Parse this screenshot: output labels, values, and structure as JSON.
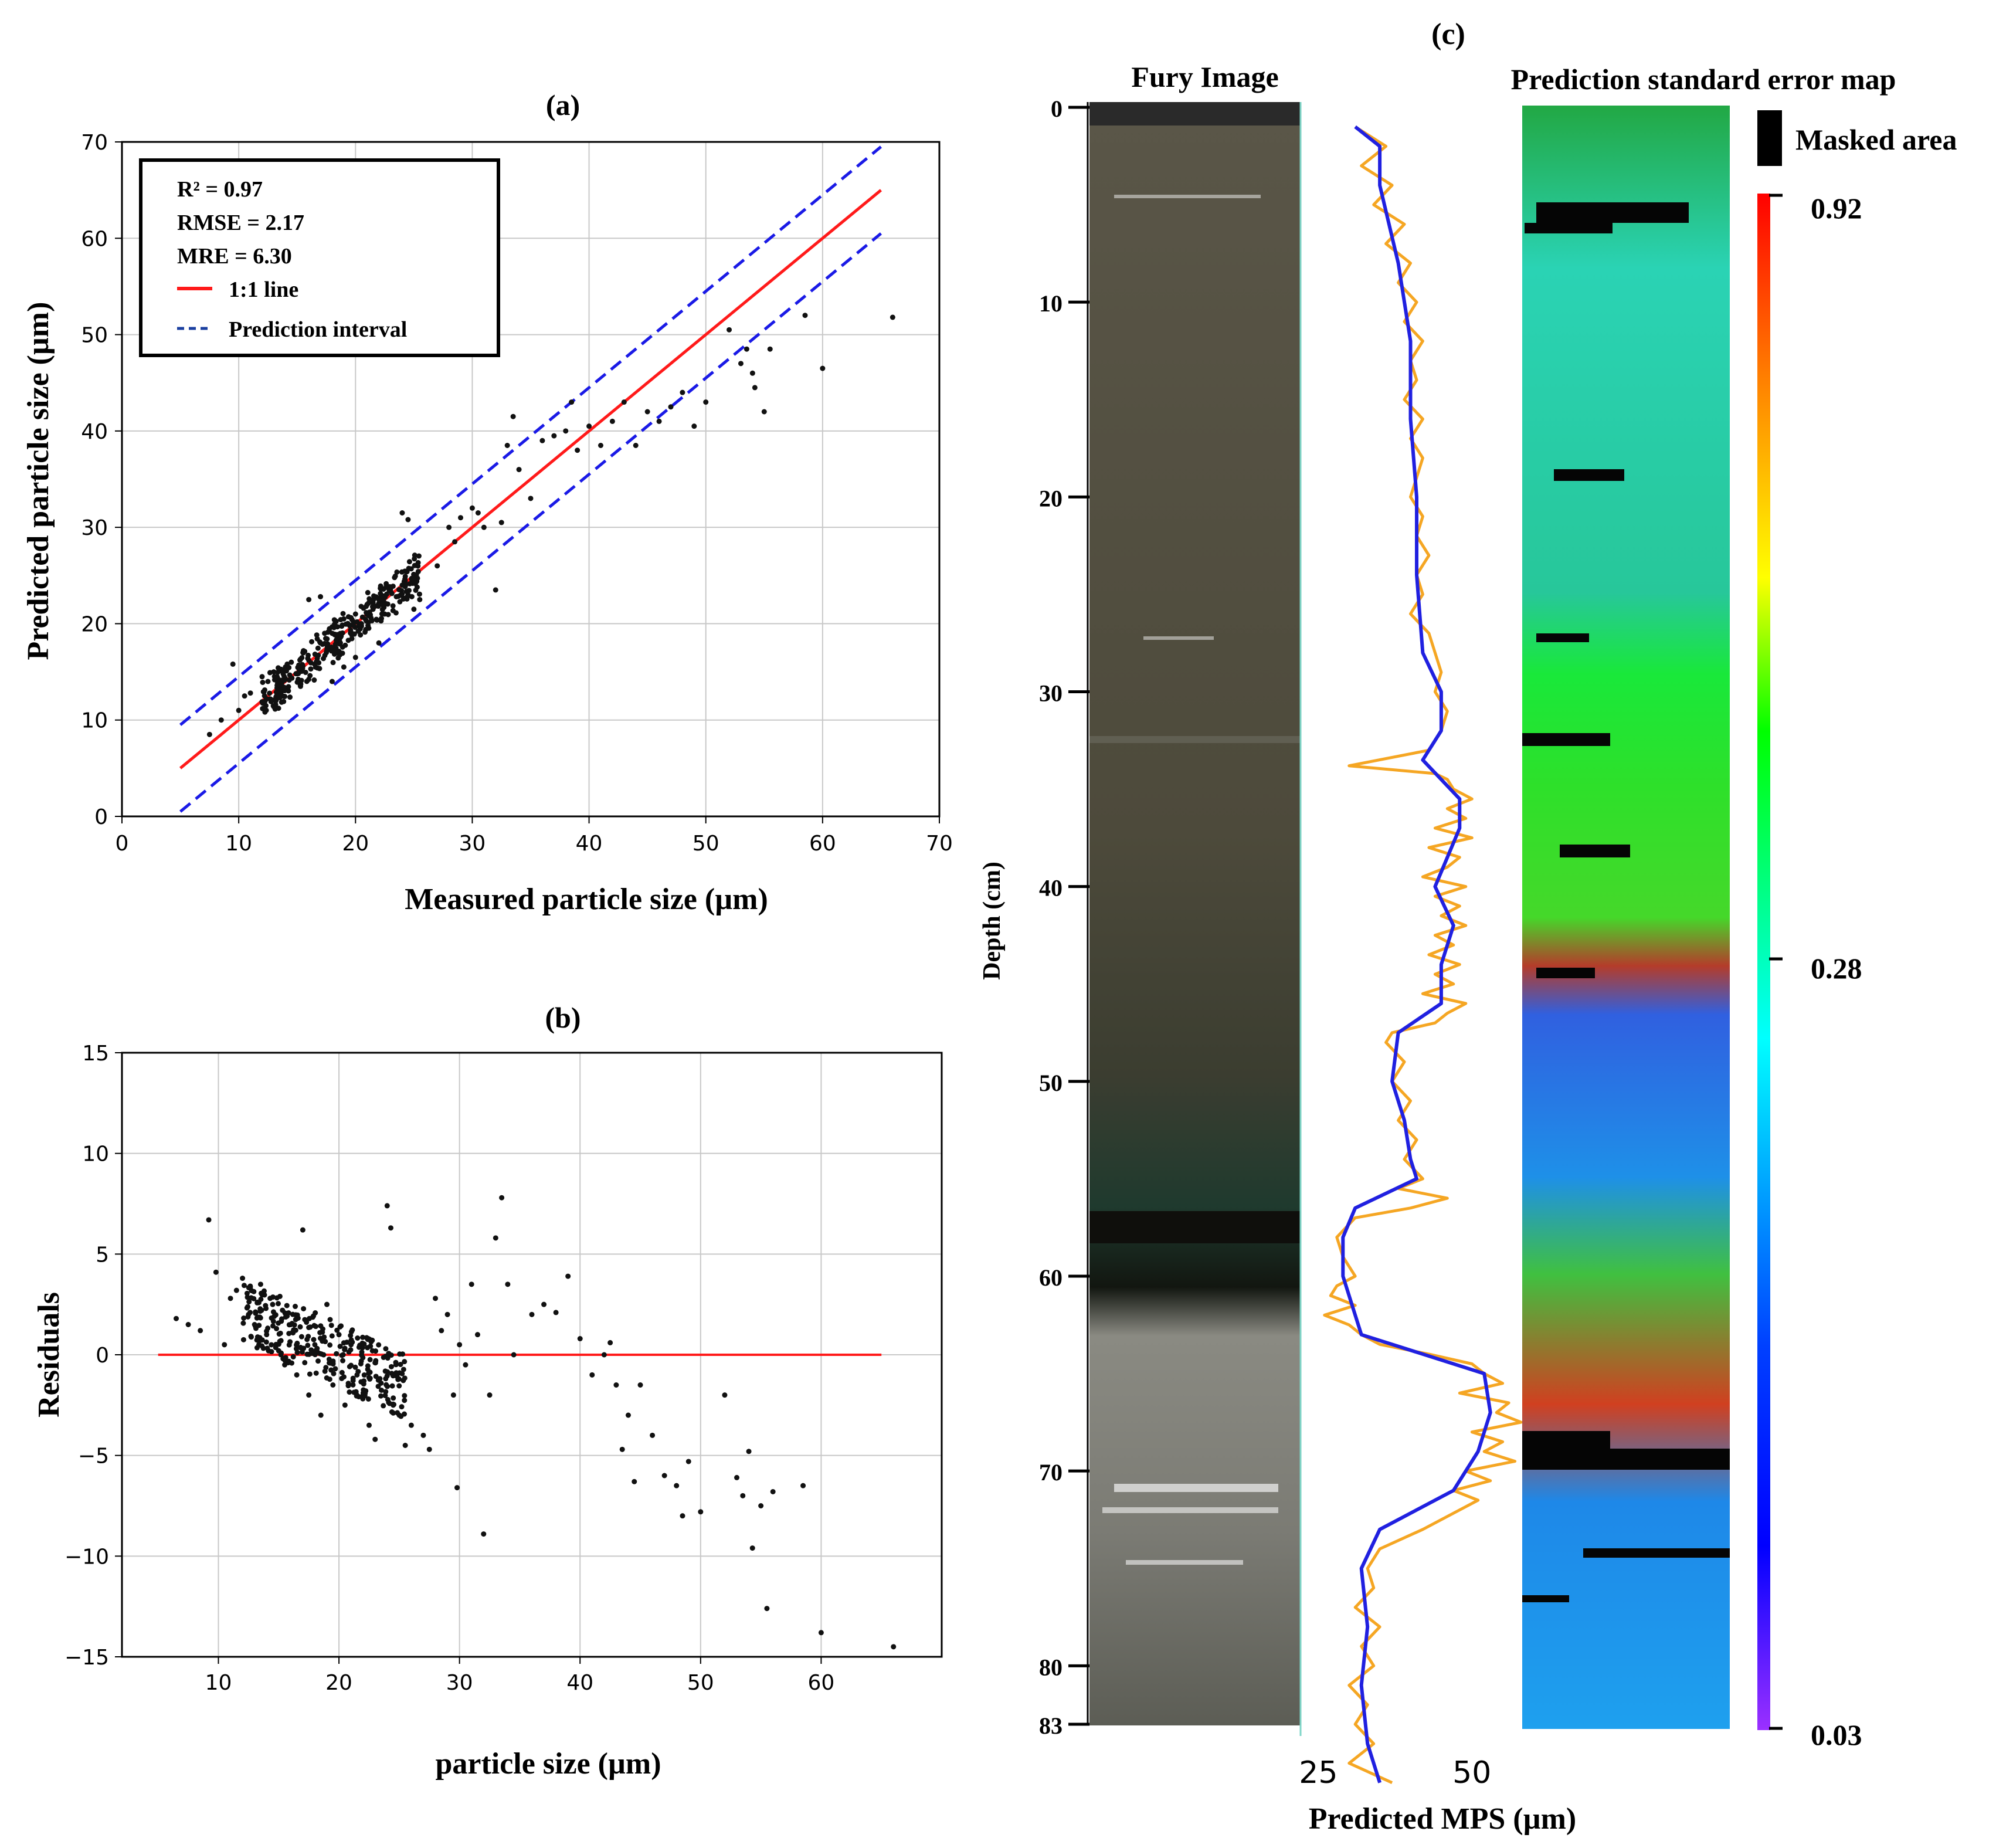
{
  "colors": {
    "fit_line": "#ff1a1a",
    "interval_line": "#1a1ae6",
    "points": "#111111",
    "orange_trace": "#f5a623",
    "blue_trace": "#2020e0"
  },
  "chart_data": [
    {
      "id": "a",
      "type": "scatter",
      "title": "(a)",
      "xlabel": "Measured particle size (µm)",
      "ylabel": "Predicted particle size (µm)",
      "xlim": [
        0,
        70
      ],
      "ylim": [
        0,
        70
      ],
      "xticks": [
        "0",
        "10",
        "20",
        "30",
        "40",
        "50",
        "60",
        "70"
      ],
      "yticks": [
        "0",
        "10",
        "20",
        "30",
        "40",
        "50",
        "60",
        "70"
      ],
      "grid": true,
      "legend": {
        "position": "top-left",
        "stats": [
          "R² = 0.97",
          "RMSE = 2.17",
          "MRE = 6.30"
        ],
        "entries": [
          {
            "label": "1:1 line",
            "style": "solid red"
          },
          {
            "label": "Prediction interval",
            "style": "dashed blue"
          }
        ]
      },
      "lines": [
        {
          "name": "1:1 line",
          "x": [
            5,
            65
          ],
          "y": [
            5,
            65
          ]
        },
        {
          "name": "upper prediction interval",
          "x": [
            5,
            65
          ],
          "y": [
            9.5,
            69.5
          ]
        },
        {
          "name": "lower prediction interval",
          "x": [
            5,
            65
          ],
          "y": [
            0.5,
            60.5
          ]
        }
      ],
      "points": [
        [
          7.5,
          8.5
        ],
        [
          8.5,
          10
        ],
        [
          9.5,
          15.8
        ],
        [
          10,
          11
        ],
        [
          10.5,
          12.5
        ],
        [
          11,
          12.8
        ],
        [
          12,
          14.5
        ],
        [
          12.5,
          14
        ],
        [
          13,
          15
        ],
        [
          13.5,
          13.5
        ],
        [
          14,
          15.5
        ],
        [
          14.5,
          16
        ],
        [
          15,
          14.8
        ],
        [
          15.5,
          17
        ],
        [
          16,
          16.2
        ],
        [
          16.5,
          15.8
        ],
        [
          17,
          18
        ],
        [
          17.5,
          17
        ],
        [
          18,
          19
        ],
        [
          18.5,
          18.5
        ],
        [
          19,
          20.5
        ],
        [
          19.5,
          19.8
        ],
        [
          20,
          21
        ],
        [
          20.5,
          20
        ],
        [
          21,
          22
        ],
        [
          21.5,
          21.5
        ],
        [
          22,
          22.5
        ],
        [
          22.5,
          21
        ],
        [
          23,
          23.5
        ],
        [
          23.5,
          22.8
        ],
        [
          24,
          24
        ],
        [
          24.5,
          23
        ],
        [
          25,
          21.5
        ],
        [
          25.5,
          22.5
        ],
        [
          16,
          22.5
        ],
        [
          17,
          22.8
        ],
        [
          18,
          14
        ],
        [
          19,
          15.5
        ],
        [
          20,
          16.5
        ],
        [
          22,
          18
        ],
        [
          24,
          31.5
        ],
        [
          24.5,
          30.8
        ],
        [
          27,
          26
        ],
        [
          28,
          30
        ],
        [
          28.5,
          28.5
        ],
        [
          29,
          31
        ],
        [
          30,
          32
        ],
        [
          30.5,
          31.5
        ],
        [
          31,
          30
        ],
        [
          32,
          23.5
        ],
        [
          32.5,
          30.5
        ],
        [
          33,
          38.5
        ],
        [
          33.5,
          41.5
        ],
        [
          34,
          36
        ],
        [
          35,
          33
        ],
        [
          36,
          39
        ],
        [
          37,
          39.5
        ],
        [
          38,
          40
        ],
        [
          38.5,
          43
        ],
        [
          39,
          38
        ],
        [
          40,
          40.5
        ],
        [
          41,
          38.5
        ],
        [
          42,
          41
        ],
        [
          43,
          43
        ],
        [
          44,
          38.5
        ],
        [
          45,
          42
        ],
        [
          46,
          41
        ],
        [
          47,
          42.5
        ],
        [
          48,
          44
        ],
        [
          49,
          40.5
        ],
        [
          50,
          43
        ],
        [
          52,
          50.5
        ],
        [
          53,
          47
        ],
        [
          53.5,
          48.5
        ],
        [
          54,
          46
        ],
        [
          54.2,
          44.5
        ],
        [
          55,
          42
        ],
        [
          55.5,
          48.5
        ],
        [
          58.5,
          52
        ],
        [
          60,
          46.5
        ],
        [
          66,
          51.8
        ]
      ]
    },
    {
      "id": "b",
      "type": "scatter",
      "title": "(b)",
      "xlabel": "particle size (µm)",
      "ylabel": "Residuals",
      "xlim": [
        2,
        70
      ],
      "ylim": [
        -15,
        15
      ],
      "xticks": [
        "10",
        "20",
        "30",
        "40",
        "50",
        "60"
      ],
      "yticks": [
        "−15",
        "−10",
        "−5",
        "0",
        "5",
        "10",
        "15"
      ],
      "grid": true,
      "lines": [
        {
          "name": "zero line",
          "x": [
            5,
            65
          ],
          "y": [
            0,
            0
          ]
        }
      ],
      "points": [
        [
          6.5,
          1.8
        ],
        [
          7.5,
          1.5
        ],
        [
          8.5,
          1.2
        ],
        [
          9.2,
          6.7
        ],
        [
          9.8,
          4.1
        ],
        [
          10.5,
          0.5
        ],
        [
          11,
          2.8
        ],
        [
          11.5,
          3.2
        ],
        [
          12,
          3.8
        ],
        [
          12.5,
          2
        ],
        [
          13,
          1.5
        ],
        [
          13.5,
          3.5
        ],
        [
          14,
          1
        ],
        [
          14.5,
          2.5
        ],
        [
          15,
          0.2
        ],
        [
          15.5,
          -0.5
        ],
        [
          16,
          1.5
        ],
        [
          16.5,
          -1
        ],
        [
          17,
          6.2
        ],
        [
          17.5,
          -2
        ],
        [
          18,
          0.5
        ],
        [
          18.5,
          -3
        ],
        [
          19,
          2.5
        ],
        [
          19.5,
          -1.5
        ],
        [
          20,
          1
        ],
        [
          20.5,
          -2.5
        ],
        [
          21,
          0.5
        ],
        [
          21.5,
          -1
        ],
        [
          22,
          -2
        ],
        [
          22.5,
          -3.5
        ],
        [
          23,
          -4.2
        ],
        [
          24,
          7.4
        ],
        [
          24.3,
          6.3
        ],
        [
          24.5,
          -2.5
        ],
        [
          25,
          -3
        ],
        [
          25.5,
          -4.5
        ],
        [
          26,
          -3.5
        ],
        [
          27,
          -4
        ],
        [
          27.5,
          -4.7
        ],
        [
          28,
          2.8
        ],
        [
          28.5,
          1.2
        ],
        [
          29,
          2
        ],
        [
          29.5,
          -2
        ],
        [
          29.8,
          -6.6
        ],
        [
          30,
          0.5
        ],
        [
          30.5,
          -0.5
        ],
        [
          31,
          3.5
        ],
        [
          31.5,
          1
        ],
        [
          32,
          -8.9
        ],
        [
          32.5,
          -2
        ],
        [
          33,
          5.8
        ],
        [
          33.5,
          7.8
        ],
        [
          34,
          3.5
        ],
        [
          34.5,
          0
        ],
        [
          36,
          2
        ],
        [
          37,
          2.5
        ],
        [
          38,
          2.1
        ],
        [
          39,
          3.9
        ],
        [
          40,
          0.8
        ],
        [
          41,
          -1
        ],
        [
          42,
          0
        ],
        [
          42.5,
          0.6
        ],
        [
          43,
          -1.5
        ],
        [
          43.5,
          -4.7
        ],
        [
          44,
          -3
        ],
        [
          44.5,
          -6.3
        ],
        [
          45,
          -1.5
        ],
        [
          46,
          -4
        ],
        [
          47,
          -6
        ],
        [
          48,
          -6.5
        ],
        [
          48.5,
          -8
        ],
        [
          49,
          -5.3
        ],
        [
          50,
          -7.8
        ],
        [
          52,
          -2
        ],
        [
          53,
          -6.1
        ],
        [
          53.5,
          -7
        ],
        [
          54,
          -4.8
        ],
        [
          54.3,
          -9.6
        ],
        [
          55,
          -7.5
        ],
        [
          55.5,
          -12.6
        ],
        [
          56,
          -6.8
        ],
        [
          58.5,
          -6.5
        ],
        [
          60,
          -13.8
        ],
        [
          66,
          -14.5
        ]
      ]
    },
    {
      "id": "c",
      "type": "line",
      "title": "(c)",
      "ylabel": "Depth (cm)",
      "xlabel": "Predicted MPS (µm)",
      "depth_ticks": [
        "0",
        "10",
        "20",
        "30",
        "40",
        "50",
        "60",
        "70",
        "80",
        "83"
      ],
      "depth_range": [
        0,
        83
      ],
      "mps_ticks": [
        "25",
        "50"
      ],
      "mps_range": [
        20,
        60
      ],
      "panel_labels": {
        "image": "Fury Image",
        "map": "Prediction standard error map"
      },
      "colorbar": {
        "masked_label": "Masked area",
        "ticks": [
          "0.92",
          "0.28",
          "0.03"
        ]
      },
      "series": [
        {
          "name": "Predicted MPS (smoothed)",
          "depth": [
            1,
            2,
            4,
            8,
            12,
            16,
            20,
            24,
            28,
            30,
            32,
            33.5,
            35.5,
            37,
            40,
            42,
            44,
            46,
            47.5,
            50,
            52,
            54,
            55,
            56.5,
            58,
            60,
            62,
            63,
            65,
            67,
            69,
            71,
            73,
            75,
            78,
            81,
            84,
            86
          ],
          "mps": [
            31,
            35,
            35,
            38,
            40,
            40,
            41,
            41,
            42,
            45,
            45,
            42,
            48,
            48,
            44,
            47,
            45,
            45,
            38,
            37,
            39,
            40,
            41,
            31,
            29,
            29,
            31,
            32,
            52,
            53,
            51,
            47,
            35,
            32,
            33,
            32,
            33,
            35
          ]
        },
        {
          "name": "Predicted MPS (raw)",
          "depth": [
            1,
            2,
            3,
            4,
            5,
            6,
            7,
            8,
            9,
            10,
            11,
            12,
            13,
            14,
            15,
            16,
            17,
            18,
            19,
            20,
            21,
            22,
            23,
            24,
            25,
            26,
            27,
            28,
            29,
            30,
            31,
            32,
            33,
            33.8,
            34.2,
            34.5,
            35,
            35.5,
            36,
            36.5,
            37,
            37.5,
            38,
            38.5,
            39,
            39.5,
            40,
            40.5,
            41,
            41.5,
            42,
            42.5,
            43,
            43.5,
            44,
            44.5,
            45,
            45.5,
            46,
            46.5,
            47,
            47.5,
            48,
            49,
            50,
            51,
            52,
            53,
            54,
            55,
            55.5,
            56,
            56.5,
            57,
            58,
            59,
            60,
            60.5,
            61,
            61.5,
            62,
            62.5,
            63,
            63.5,
            64,
            64.5,
            65,
            65.5,
            66,
            66.5,
            67,
            67.5,
            68,
            68.5,
            69,
            69.5,
            70,
            70.5,
            71,
            71.5,
            72,
            73,
            74,
            75,
            76,
            77,
            78,
            79,
            80,
            81,
            82,
            83,
            84,
            85,
            86
          ],
          "mps": [
            31,
            36,
            32,
            37,
            34,
            39,
            36,
            40,
            38,
            41,
            39,
            42,
            40,
            41,
            39,
            42,
            40,
            42,
            41,
            40,
            42,
            41,
            43,
            41,
            42,
            40,
            43,
            44,
            45,
            44,
            46,
            45,
            43,
            30,
            44,
            46,
            47,
            50,
            46,
            49,
            44,
            50,
            43,
            48,
            46,
            42,
            49,
            44,
            48,
            45,
            49,
            44,
            47,
            43,
            48,
            44,
            47,
            42,
            49,
            46,
            44,
            37,
            36,
            39,
            37,
            40,
            38,
            41,
            39,
            42,
            38,
            46,
            40,
            31,
            28,
            29,
            31,
            28,
            27,
            31,
            26,
            30,
            32,
            35,
            43,
            50,
            52,
            55,
            48,
            56,
            54,
            58,
            50,
            55,
            52,
            57,
            49,
            53,
            47,
            51,
            48,
            42,
            35,
            33,
            34,
            31,
            35,
            32,
            34,
            30,
            33,
            31,
            34,
            30,
            37
          ]
        }
      ]
    }
  ]
}
